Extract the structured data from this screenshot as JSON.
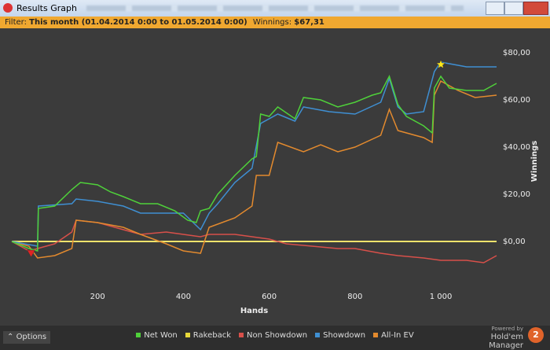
{
  "window": {
    "title": "Results Graph",
    "filter_label": "Filter:",
    "filter_value": "This month (01.04.2014 0:00 to 01.05.2014 0:00)",
    "winnings_label": "Winnings:",
    "winnings_value": "$67,31",
    "options": "Options",
    "powered_by": "Powered by",
    "brand": "Hold'em Manager",
    "brand_badge": "2"
  },
  "chart_data": {
    "type": "line",
    "xlabel": "Hands",
    "ylabel": "Winnings",
    "xlim": [
      0,
      1130
    ],
    "ylim": [
      -20,
      89
    ],
    "xticks": [
      200,
      400,
      600,
      800,
      {
        "value": 1000,
        "label": "1 000"
      }
    ],
    "yticks": [
      {
        "value": 0,
        "label": "$0,00"
      },
      {
        "value": 20,
        "label": "$20,00"
      },
      {
        "value": 40,
        "label": "$40,00"
      },
      {
        "value": 60,
        "label": "$60,00"
      },
      {
        "value": 80,
        "label": "$80,00"
      }
    ],
    "grid": false,
    "legend": "bottom",
    "series": [
      {
        "name": "Net Won",
        "color": "#4fd13a",
        "x": [
          0,
          40,
          60,
          62,
          100,
          140,
          160,
          200,
          230,
          260,
          300,
          340,
          380,
          410,
          430,
          440,
          460,
          480,
          520,
          560,
          570,
          580,
          600,
          620,
          660,
          680,
          720,
          760,
          800,
          840,
          860,
          880,
          900,
          920,
          960,
          980,
          985,
          1000,
          1020,
          1060,
          1100,
          1130
        ],
        "values": [
          0,
          -3,
          -4,
          14,
          15,
          22,
          25,
          24,
          21,
          19,
          16,
          16,
          13,
          9,
          8,
          13,
          14,
          20,
          28,
          35,
          36,
          54,
          53,
          57,
          52,
          61,
          60,
          57,
          59,
          62,
          63,
          70,
          58,
          53,
          49,
          46,
          65,
          70,
          65,
          64,
          64,
          67
        ]
      },
      {
        "name": "Rakeback",
        "color": "#e8d93a",
        "x": [
          0,
          1130
        ],
        "values": [
          0,
          0
        ]
      },
      {
        "name": "Non Showdown",
        "color": "#d8504a",
        "x": [
          0,
          40,
          60,
          100,
          140,
          150,
          200,
          260,
          300,
          360,
          400,
          440,
          460,
          520,
          560,
          600,
          640,
          700,
          760,
          800,
          860,
          900,
          960,
          1000,
          1060,
          1100,
          1130
        ],
        "values": [
          0,
          -4,
          -3,
          -1,
          4,
          9,
          8,
          5,
          3,
          4,
          3,
          2,
          3,
          3,
          2,
          1,
          -1,
          -2,
          -3,
          -3,
          -5,
          -6,
          -7,
          -8,
          -8,
          -9,
          -6
        ]
      },
      {
        "name": "Showdown",
        "color": "#3f8fd2",
        "x": [
          0,
          60,
          62,
          140,
          150,
          200,
          260,
          300,
          360,
          400,
          440,
          460,
          480,
          520,
          560,
          580,
          620,
          660,
          680,
          740,
          800,
          860,
          880,
          900,
          920,
          960,
          985,
          1000,
          1060,
          1130
        ],
        "values": [
          0,
          -2,
          15,
          16,
          18,
          17,
          15,
          12,
          12,
          12,
          5,
          12,
          16,
          25,
          31,
          50,
          54,
          51,
          57,
          55,
          54,
          59,
          69,
          57,
          54,
          55,
          72,
          76,
          74,
          74
        ]
      },
      {
        "name": "All-In EV",
        "color": "#e38a2e",
        "x": [
          0,
          40,
          60,
          100,
          140,
          150,
          200,
          260,
          300,
          360,
          400,
          440,
          460,
          520,
          560,
          570,
          600,
          620,
          680,
          720,
          760,
          800,
          860,
          880,
          900,
          960,
          980,
          985,
          1000,
          1040,
          1080,
          1130
        ],
        "values": [
          0,
          -2,
          -7,
          -6,
          -3,
          9,
          8,
          6,
          3,
          -1,
          -4,
          -5,
          6,
          10,
          15,
          28,
          28,
          42,
          38,
          41,
          38,
          40,
          45,
          56,
          47,
          44,
          42,
          62,
          68,
          64,
          61,
          62
        ]
      }
    ],
    "markers": [
      {
        "x": 45,
        "y": -5,
        "color": "#e02424",
        "shape": "triangle"
      },
      {
        "x": 1000,
        "y": 75,
        "color": "#ffe81a",
        "shape": "star"
      }
    ]
  }
}
